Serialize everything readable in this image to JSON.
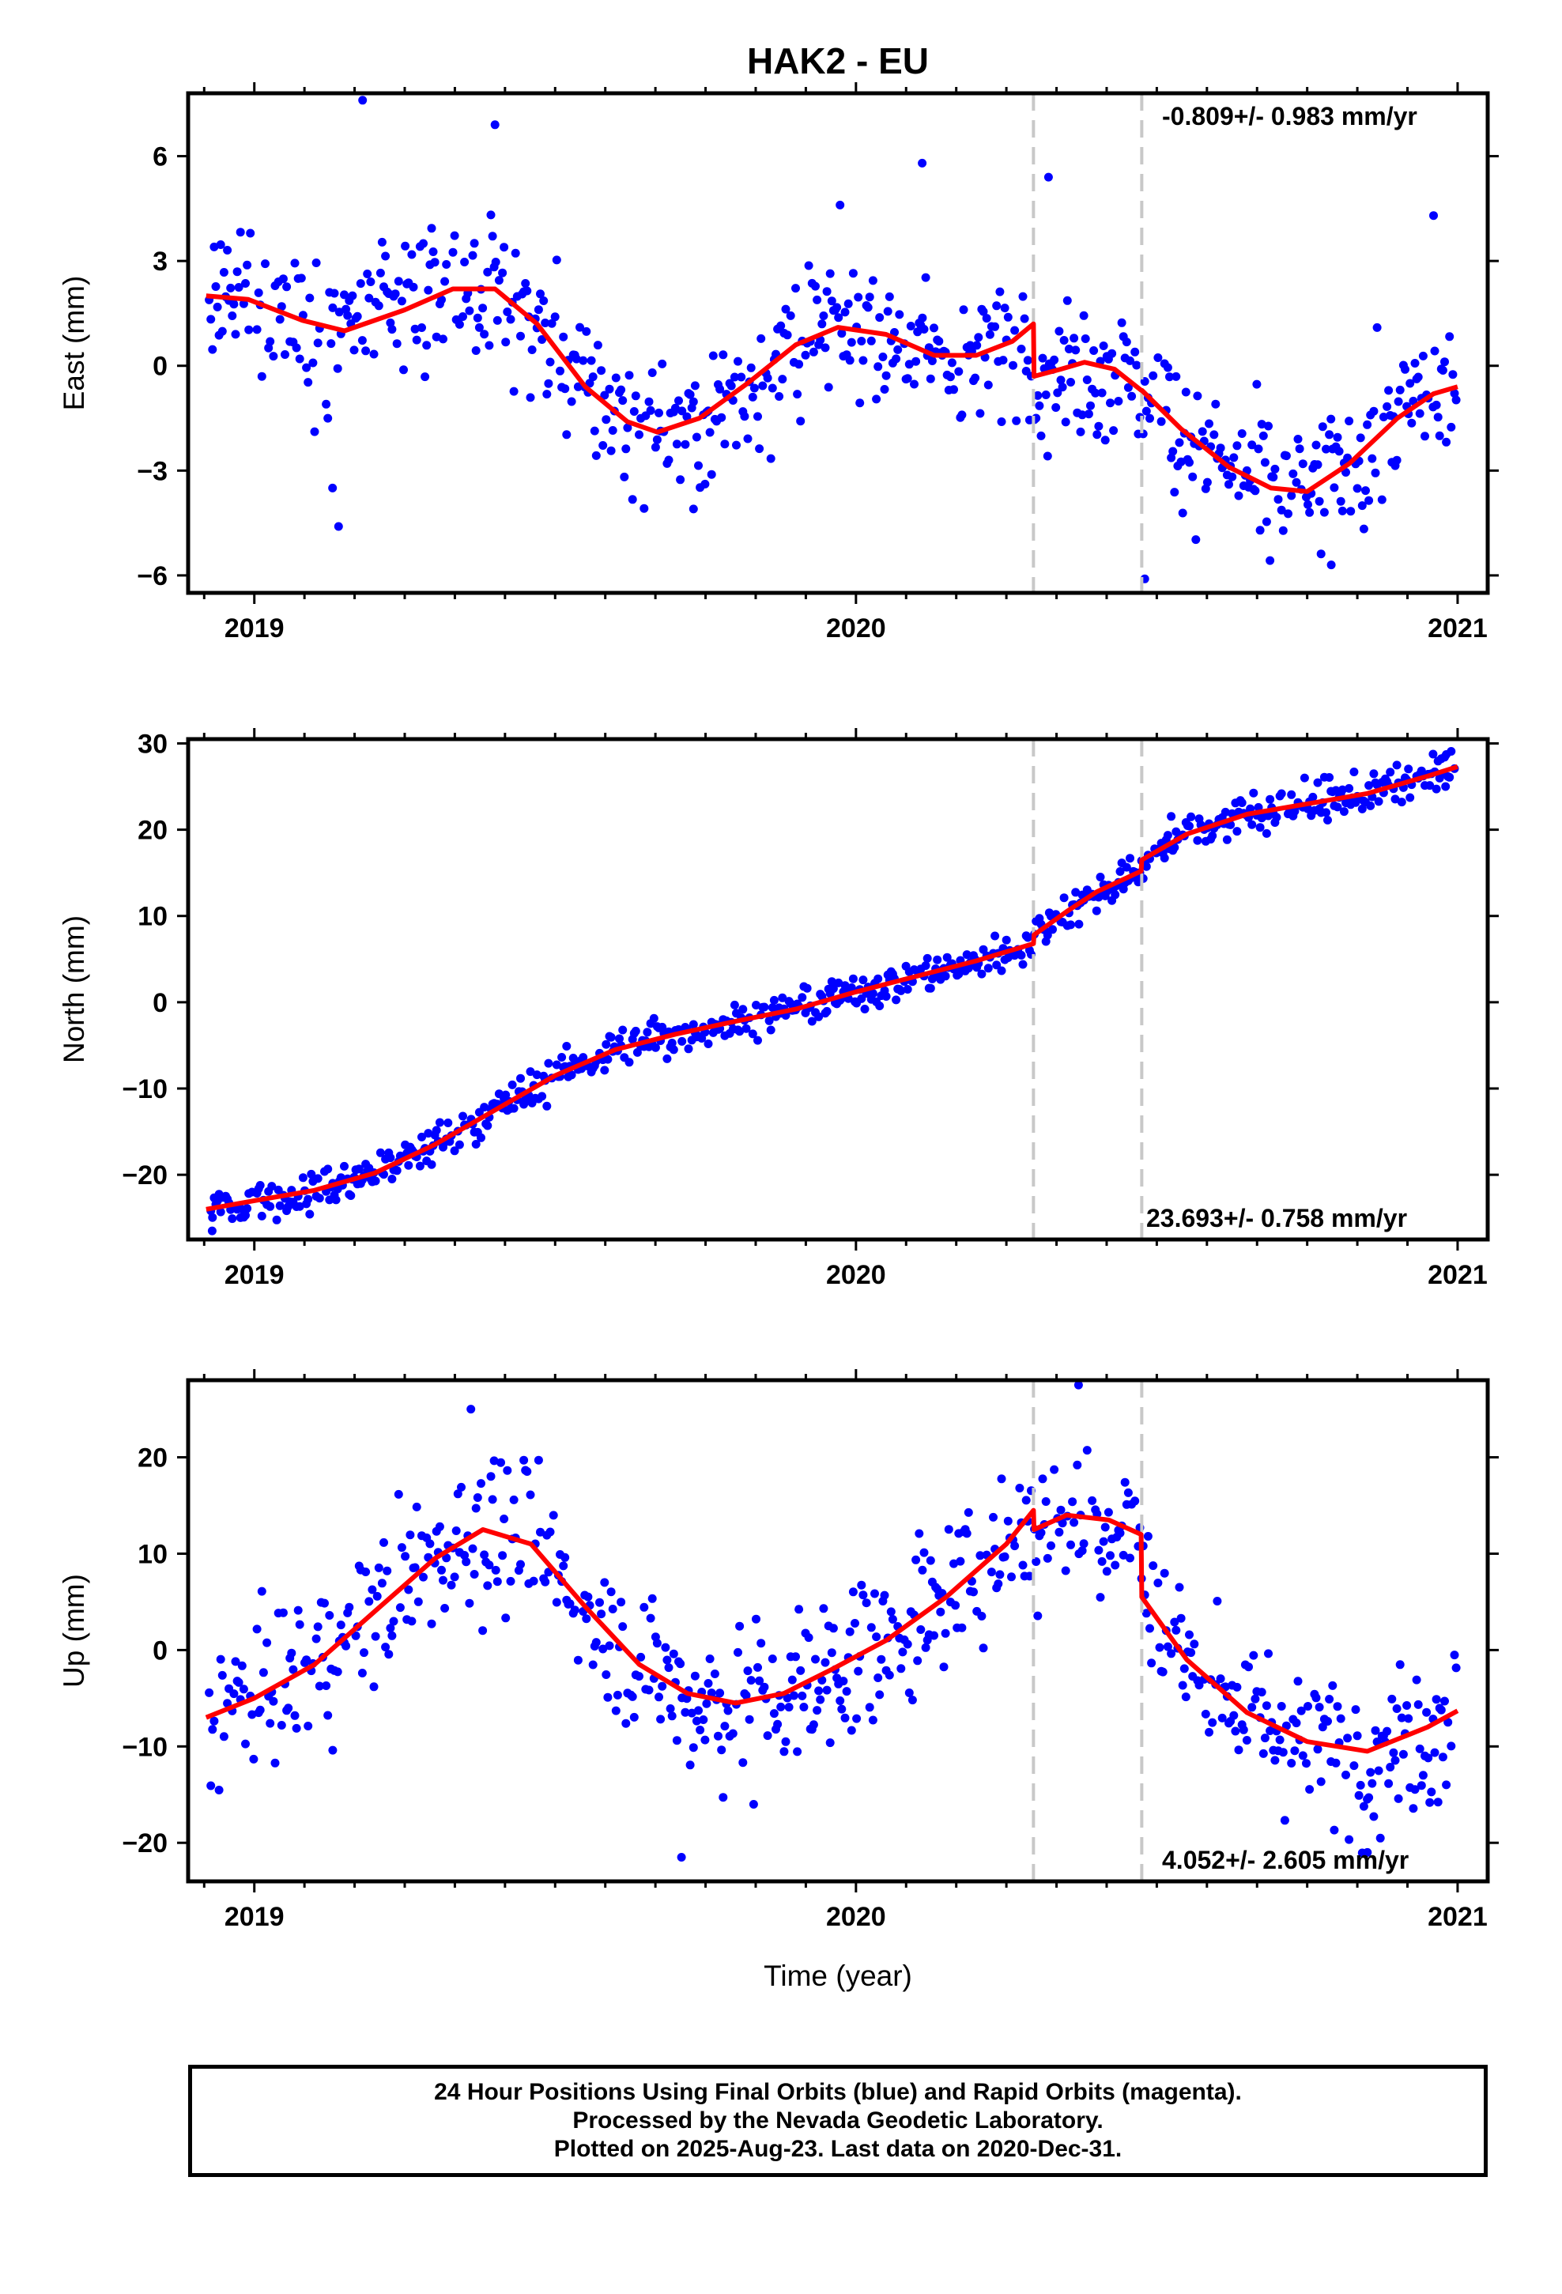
{
  "chart_data": {
    "type": "scatter",
    "title": "HAK2 - EU",
    "xlabel": "Time (year)",
    "x_tick_labels": [
      "2019",
      "2020",
      "2021"
    ],
    "xlim": [
      2018.89,
      2021.05
    ],
    "step_epochs": [
      2020.295,
      2020.475
    ],
    "series_colors": {
      "observed": "#0000ff",
      "model": "#ff0000",
      "steps": "#c8c8c8"
    },
    "panels": [
      {
        "name": "east",
        "ylabel": "East (mm)",
        "ylim": [
          -6.5,
          7.8
        ],
        "y_ticks": [
          6,
          3,
          0,
          -3,
          -6
        ],
        "y_tick_labels": [
          "6",
          "3",
          "0",
          "−3",
          "−6"
        ],
        "rate_label": "-0.809+/- 0.983 mm/yr",
        "rate_position": "top-right",
        "model_knots": {
          "x": [
            2018.92,
            2018.99,
            2019.08,
            2019.15,
            2019.25,
            2019.33,
            2019.4,
            2019.47,
            2019.55,
            2019.62,
            2019.67,
            2019.74,
            2019.82,
            2019.9,
            2019.97,
            2020.05,
            2020.13,
            2020.2,
            2020.26,
            2020.295,
            2020.296,
            2020.34,
            2020.38,
            2020.43,
            2020.474,
            2020.475,
            2020.54,
            2020.62,
            2020.69,
            2020.75,
            2020.82,
            2020.9,
            2020.96,
            2021.0
          ],
          "y": [
            2.0,
            1.9,
            1.3,
            1.0,
            1.6,
            2.2,
            2.2,
            1.2,
            -0.6,
            -1.6,
            -1.9,
            -1.5,
            -0.5,
            0.6,
            1.1,
            0.9,
            0.3,
            0.3,
            0.7,
            1.2,
            -0.3,
            -0.1,
            0.1,
            -0.1,
            -0.7,
            -0.7,
            -1.8,
            -2.9,
            -3.5,
            -3.6,
            -2.8,
            -1.5,
            -0.8,
            -0.6
          ]
        },
        "scatter": {
          "sd": 1.0,
          "outliers": [
            [
              2019.18,
              7.6
            ],
            [
              2019.4,
              6.9
            ],
            [
              2020.11,
              5.8
            ],
            [
              2020.32,
              5.4
            ],
            [
              2020.96,
              4.3
            ],
            [
              2019.14,
              -4.6
            ],
            [
              2019.13,
              -3.5
            ],
            [
              2020.79,
              -5.7
            ],
            [
              2020.48,
              -6.1
            ],
            [
              2019.73,
              -4.1
            ]
          ]
        }
      },
      {
        "name": "north",
        "ylabel": "North (mm)",
        "ylim": [
          -27.5,
          30.5
        ],
        "y_ticks": [
          30,
          20,
          10,
          0,
          -10,
          -20
        ],
        "y_tick_labels": [
          "30",
          "20",
          "10",
          "0",
          "−10",
          "−20"
        ],
        "rate_label": "23.693+/- 0.758 mm/yr",
        "rate_position": "bottom-right",
        "model_knots": {
          "x": [
            2018.92,
            2019.0,
            2019.1,
            2019.2,
            2019.3,
            2019.4,
            2019.5,
            2019.6,
            2019.7,
            2019.8,
            2019.9,
            2020.0,
            2020.1,
            2020.2,
            2020.295,
            2020.296,
            2020.35,
            2020.4,
            2020.474,
            2020.475,
            2020.55,
            2020.65,
            2020.75,
            2020.85,
            2020.95,
            2021.0
          ],
          "y": [
            -24.0,
            -23.0,
            -21.8,
            -19.8,
            -16.5,
            -12.5,
            -8.5,
            -5.5,
            -3.7,
            -2.2,
            -0.8,
            1.2,
            3.0,
            4.8,
            6.8,
            7.8,
            10.5,
            12.8,
            15.2,
            16.5,
            19.5,
            21.8,
            23.0,
            24.2,
            26.2,
            27.3
          ]
        },
        "scatter": {
          "sd": 1.2,
          "outliers": [
            [
              2018.93,
              -26.5
            ],
            [
              2020.98,
              25.0
            ],
            [
              2020.4,
              10.6
            ]
          ]
        }
      },
      {
        "name": "up",
        "ylabel": "Up (mm)",
        "ylim": [
          -24,
          28
        ],
        "y_ticks": [
          20,
          10,
          0,
          -10,
          -20
        ],
        "y_tick_labels": [
          "20",
          "10",
          "0",
          "−10",
          "−20"
        ],
        "rate_label": "4.052+/- 2.605 mm/yr",
        "rate_position": "bottom-right",
        "model_knots": {
          "x": [
            2018.92,
            2019.0,
            2019.1,
            2019.2,
            2019.3,
            2019.38,
            2019.46,
            2019.55,
            2019.64,
            2019.72,
            2019.8,
            2019.88,
            2019.96,
            2020.05,
            2020.15,
            2020.25,
            2020.295,
            2020.296,
            2020.35,
            2020.42,
            2020.474,
            2020.475,
            2020.55,
            2020.65,
            2020.75,
            2020.85,
            2020.95,
            2021.0
          ],
          "y": [
            -7.0,
            -5.0,
            -1.5,
            4.0,
            9.5,
            12.5,
            11.0,
            4.5,
            -1.5,
            -4.5,
            -5.5,
            -4.5,
            -2.0,
            1.0,
            5.5,
            11.0,
            14.5,
            12.5,
            14.0,
            13.5,
            12.0,
            5.5,
            -1.0,
            -6.5,
            -9.5,
            -10.5,
            -8.0,
            -6.3
          ]
        },
        "scatter": {
          "sd": 4.0,
          "outliers": [
            [
              2019.36,
              25.0
            ],
            [
              2020.37,
              27.5
            ],
            [
              2019.71,
              -21.5
            ],
            [
              2020.85,
              -21.0
            ],
            [
              2019.83,
              -16.0
            ]
          ]
        }
      }
    ]
  },
  "footer": {
    "line1": "24 Hour Positions Using Final Orbits (blue) and Rapid Orbits (magenta).",
    "line2": "Processed by the Nevada Geodetic Laboratory.",
    "line3": "Plotted on 2025-Aug-23. Last data on 2020-Dec-31."
  }
}
